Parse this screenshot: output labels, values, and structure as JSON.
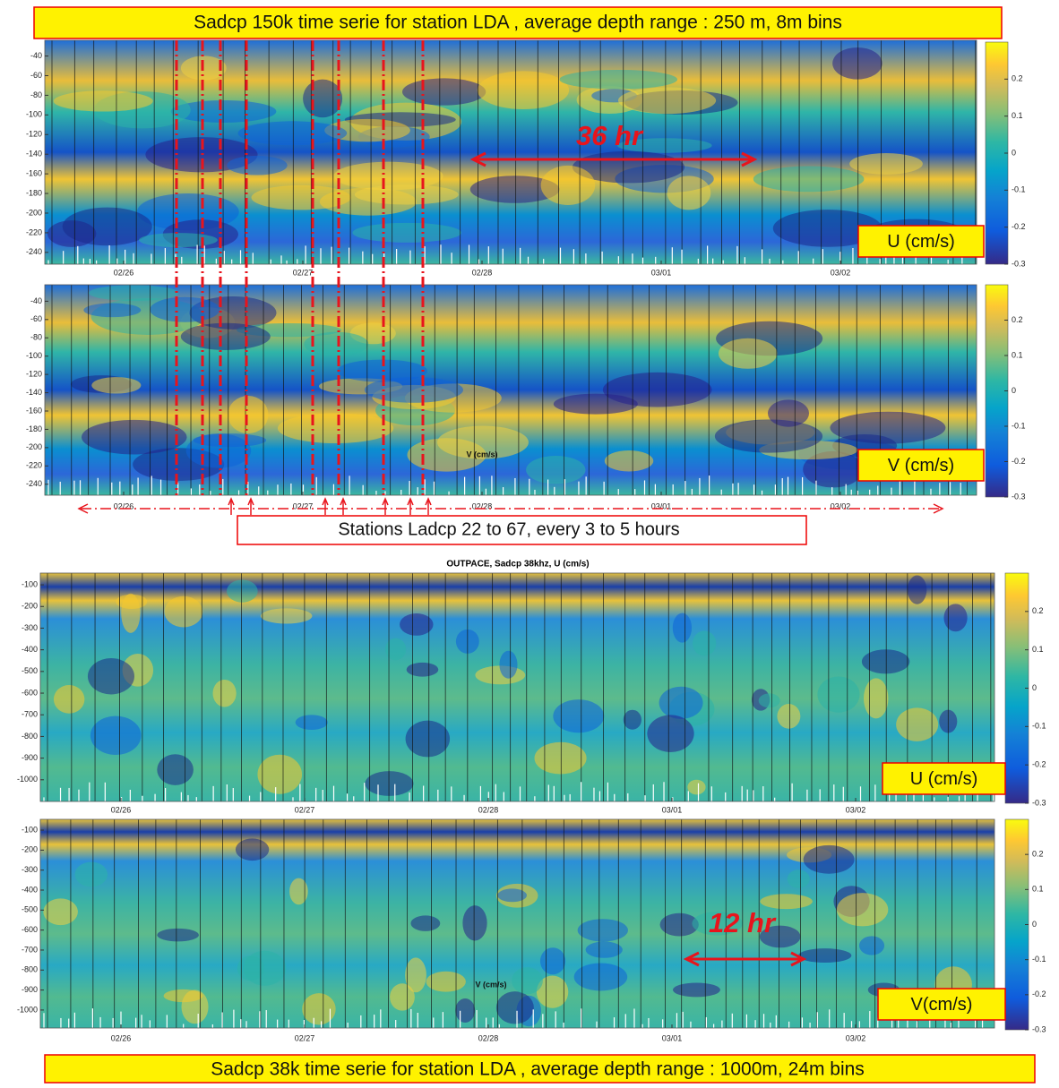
{
  "header": {
    "title": "Sadcp 150k time serie for station LDA , average depth range : 250 m, 8m bins"
  },
  "footer": {
    "title": "Sadcp 38k time serie for station LDA , average depth range : 1000m, 24m bins"
  },
  "annotations": {
    "duration_upper": "36 hr",
    "duration_lower": "12 hr",
    "stations": "Stations Ladcp 22 to 67, every 3 to 5  hours"
  },
  "chart_data": [
    {
      "type": "heatmap",
      "legend_label": "U (cm/s)",
      "ylim": [
        -252,
        -24
      ],
      "yticks": [
        -40,
        -60,
        -80,
        -100,
        -120,
        -140,
        -160,
        -180,
        -200,
        -220,
        -240
      ],
      "x_tick_labels": [
        "02/26",
        "02/27",
        "02/28",
        "03/01",
        "03/02"
      ],
      "colorbar_lim": [
        -0.3,
        0.3
      ],
      "colorbar_ticks": [
        0.2,
        0.1,
        0,
        -0.1,
        -0.2,
        -0.3
      ]
    },
    {
      "type": "heatmap",
      "legend_label": "V (cm/s)",
      "inner_label": "V (cm/s)",
      "ylim": [
        -252,
        -22
      ],
      "yticks": [
        -40,
        -60,
        -80,
        -100,
        -120,
        -140,
        -160,
        -180,
        -200,
        -220,
        -240
      ],
      "x_tick_labels": [
        "02/26",
        "02/27",
        "02/28",
        "03/01",
        "03/02"
      ],
      "colorbar_lim": [
        -0.3,
        0.3
      ],
      "colorbar_ticks": [
        0.2,
        0.1,
        0,
        -0.1,
        -0.2,
        -0.3
      ]
    },
    {
      "type": "heatmap",
      "title": "OUTPACE, Sadcp 38khz, U (cm/s)",
      "legend_label": "U (cm/s)",
      "ylim": [
        -1100,
        -46
      ],
      "yticks": [
        -100,
        -200,
        -300,
        -400,
        -500,
        -600,
        -700,
        -800,
        -900,
        -1000
      ],
      "x_tick_labels": [
        "02/26",
        "02/27",
        "02/28",
        "03/01",
        "03/02"
      ],
      "colorbar_lim": [
        -0.3,
        0.3
      ],
      "colorbar_ticks": [
        0.2,
        0.1,
        0,
        -0.1,
        -0.2,
        -0.3
      ]
    },
    {
      "type": "heatmap",
      "legend_label": "V(cm/s)",
      "inner_label": "V (cm/s)",
      "ylim": [
        -1090,
        -46
      ],
      "yticks": [
        -100,
        -200,
        -300,
        -400,
        -500,
        -600,
        -700,
        -800,
        -900,
        -1000
      ],
      "x_tick_labels": [
        "02/26",
        "02/27",
        "02/28",
        "03/01",
        "03/02"
      ],
      "colorbar_lim": [
        -0.3,
        0.3
      ],
      "colorbar_ticks": [
        0.2,
        0.1,
        0,
        -0.1,
        -0.2,
        -0.3
      ]
    }
  ]
}
